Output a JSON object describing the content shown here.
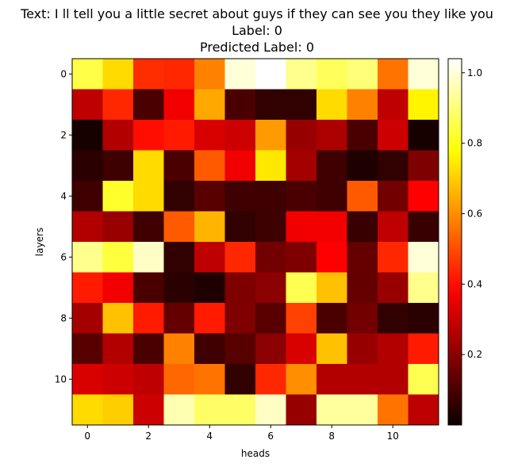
{
  "title_lines": [
    "Text: I ll tell you a little secret about guys if they can see you they like you",
    "Label: 0",
    "Predicted Label: 0"
  ],
  "chart_data": {
    "type": "heatmap",
    "title": "Text: I ll tell you a little secret about guys if they can see you they like you\nLabel: 0\nPredicted Label: 0",
    "xlabel": "heads",
    "ylabel": "layers",
    "x_ticks": [
      0,
      2,
      4,
      6,
      8,
      10
    ],
    "y_ticks": [
      0,
      2,
      4,
      6,
      8,
      10
    ],
    "colormap": "hot",
    "vmin": 0.0,
    "vmax": 1.04,
    "colorbar_ticks": [
      0.2,
      0.4,
      0.6,
      0.8,
      1.0
    ],
    "rows": 12,
    "cols": 12,
    "values": [
      [
        0.85,
        0.72,
        0.45,
        0.44,
        0.58,
        1.0,
        1.04,
        0.92,
        0.87,
        0.9,
        0.56,
        1.0
      ],
      [
        0.28,
        0.44,
        0.1,
        0.36,
        0.64,
        0.1,
        0.06,
        0.06,
        0.72,
        0.58,
        0.28,
        0.76
      ],
      [
        0.02,
        0.26,
        0.4,
        0.42,
        0.32,
        0.3,
        0.62,
        0.22,
        0.25,
        0.1,
        0.3,
        0.02
      ],
      [
        0.05,
        0.08,
        0.72,
        0.1,
        0.52,
        0.36,
        0.74,
        0.24,
        0.08,
        0.03,
        0.06,
        0.18
      ],
      [
        0.08,
        0.82,
        0.72,
        0.06,
        0.12,
        0.08,
        0.08,
        0.1,
        0.08,
        0.52,
        0.16,
        0.38
      ],
      [
        0.26,
        0.22,
        0.08,
        0.52,
        0.66,
        0.06,
        0.08,
        0.36,
        0.36,
        0.07,
        0.28,
        0.07
      ],
      [
        0.92,
        0.84,
        0.98,
        0.06,
        0.28,
        0.44,
        0.16,
        0.18,
        0.38,
        0.14,
        0.44,
        1.0
      ],
      [
        0.42,
        0.36,
        0.1,
        0.05,
        0.03,
        0.18,
        0.2,
        0.86,
        0.68,
        0.14,
        0.22,
        0.92
      ],
      [
        0.24,
        0.68,
        0.42,
        0.14,
        0.42,
        0.18,
        0.12,
        0.48,
        0.1,
        0.16,
        0.06,
        0.05
      ],
      [
        0.12,
        0.26,
        0.1,
        0.58,
        0.08,
        0.12,
        0.2,
        0.32,
        0.68,
        0.22,
        0.26,
        0.42
      ],
      [
        0.32,
        0.3,
        0.28,
        0.54,
        0.56,
        0.06,
        0.44,
        0.6,
        0.26,
        0.26,
        0.26,
        0.86
      ],
      [
        0.72,
        0.7,
        0.3,
        0.96,
        0.88,
        0.88,
        0.98,
        0.22,
        0.94,
        0.94,
        0.56,
        0.28
      ]
    ]
  }
}
